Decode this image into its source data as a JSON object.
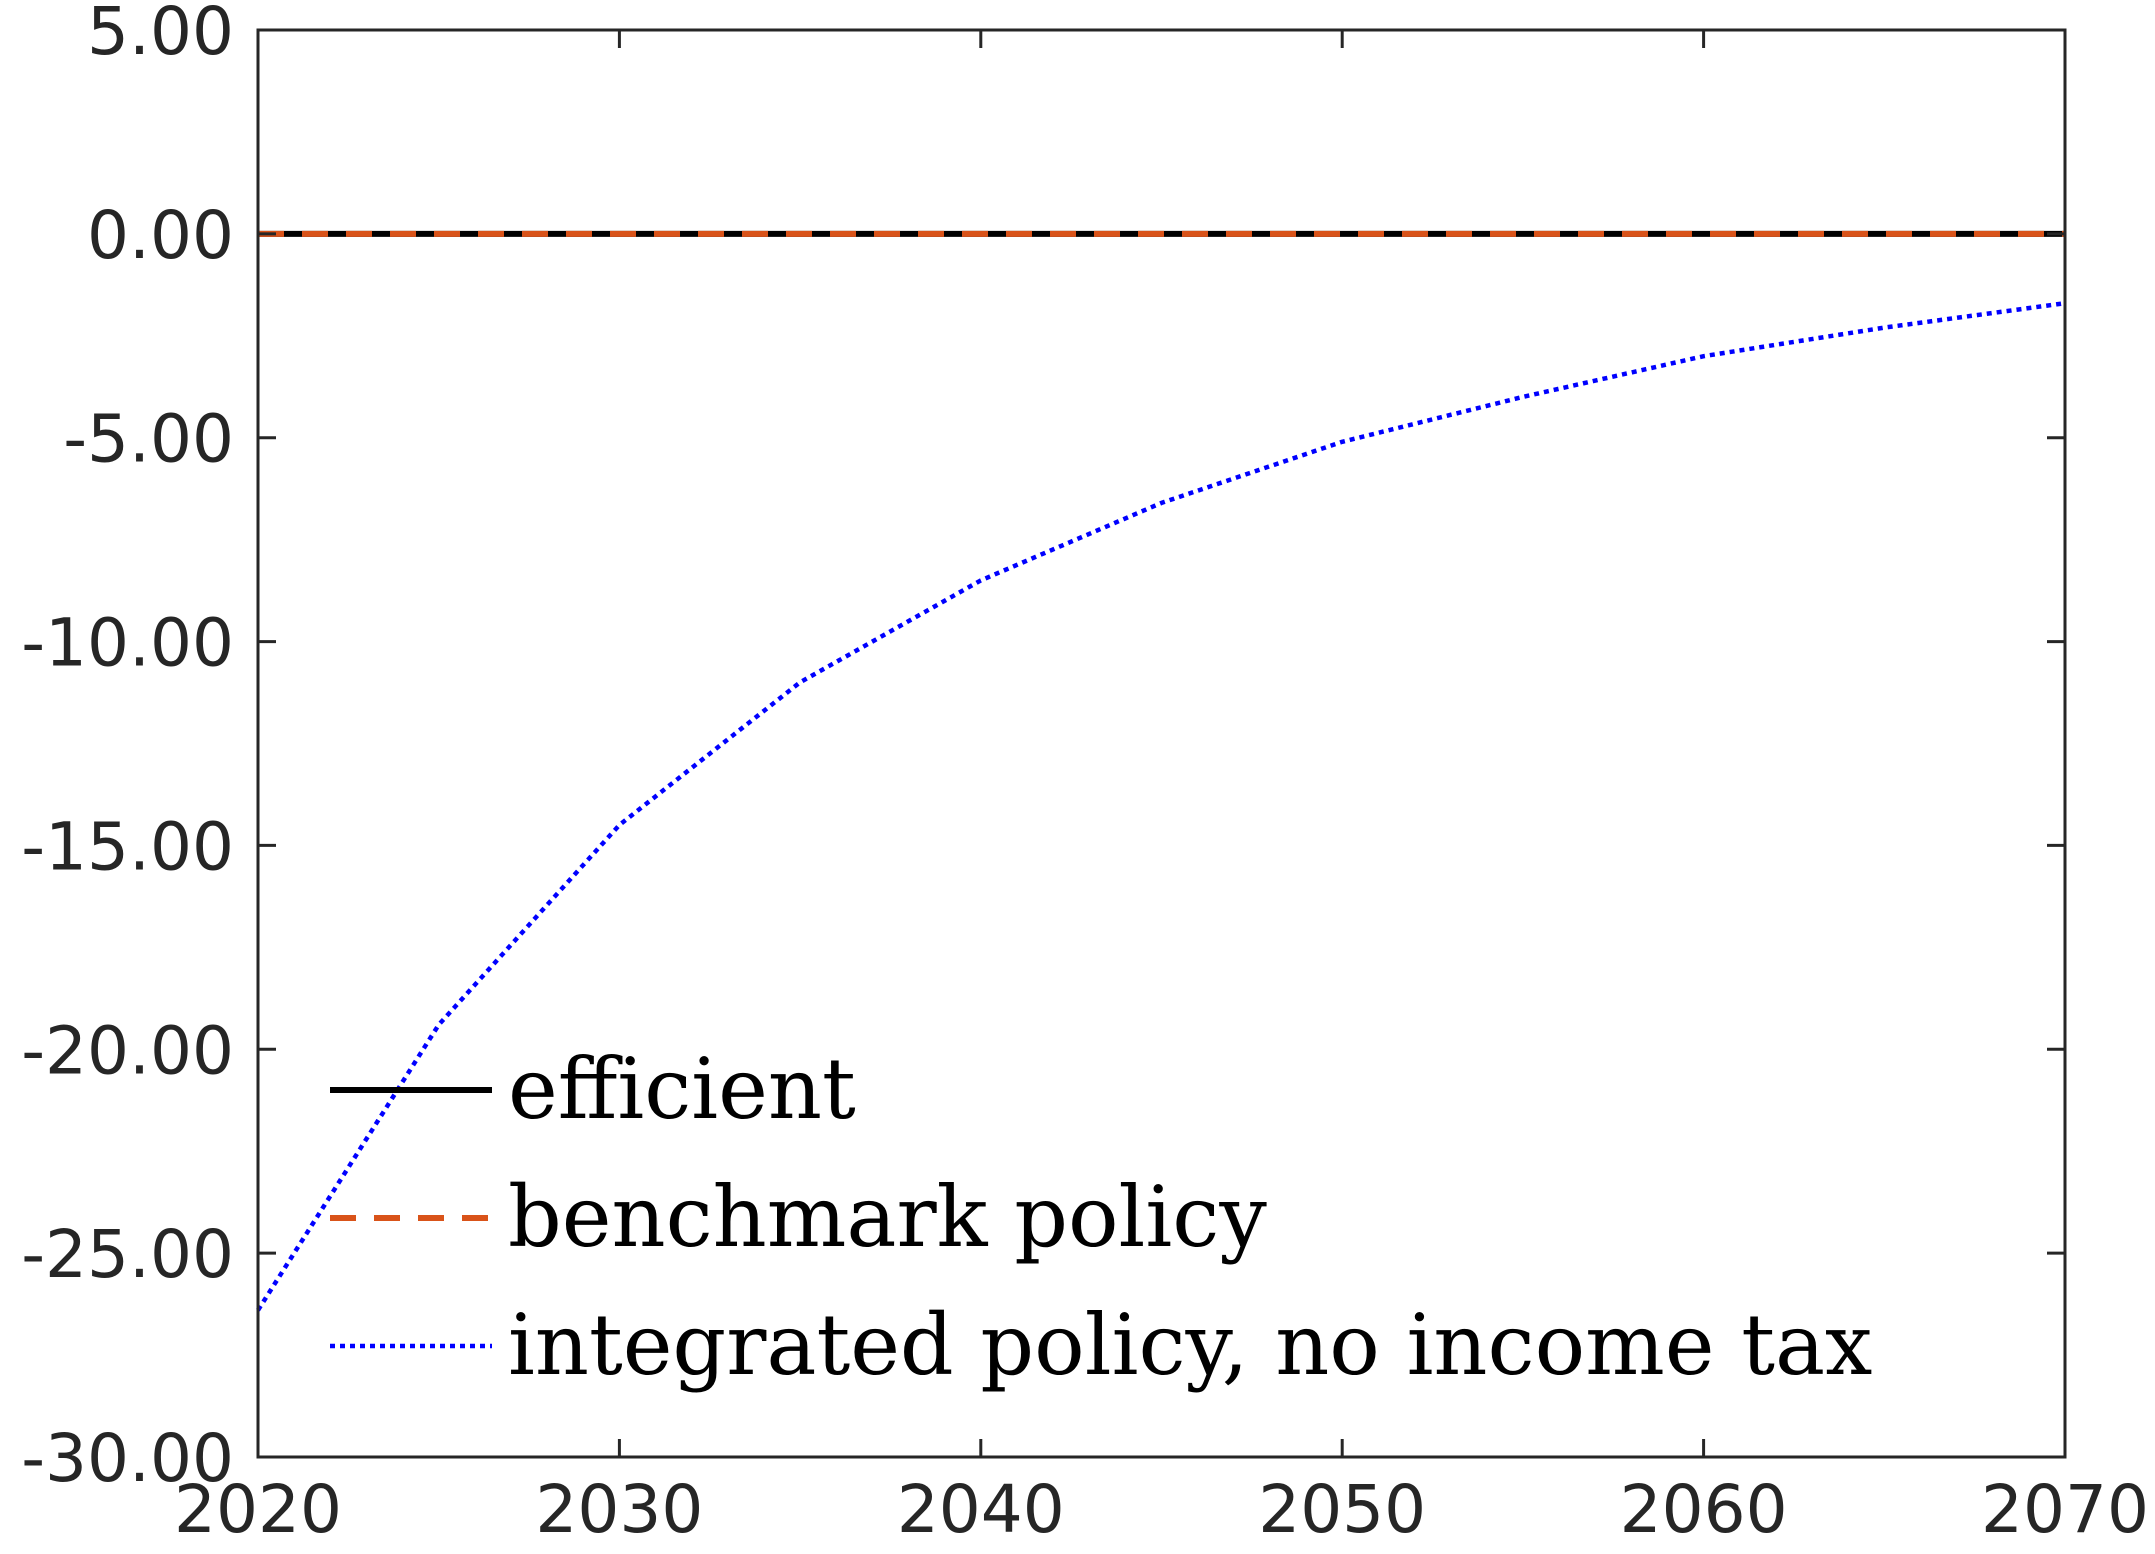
{
  "chart_data": {
    "type": "line",
    "title": "",
    "xlabel": "",
    "ylabel": "",
    "xlim": [
      2020,
      2070
    ],
    "ylim": [
      -30,
      5
    ],
    "xticks": [
      2020,
      2030,
      2040,
      2050,
      2060,
      2070
    ],
    "xtick_labels": [
      "2020",
      "2030",
      "2040",
      "2050",
      "2060",
      "2070"
    ],
    "yticks": [
      5,
      0,
      -5,
      -10,
      -15,
      -20,
      -25,
      -30
    ],
    "ytick_labels": [
      "5.00",
      "0.00",
      "-5.00",
      "-10.00",
      "-15.00",
      "-20.00",
      "-25.00",
      "-30.00"
    ],
    "grid": false,
    "legend_position": "bottom-left",
    "x": [
      2020,
      2025,
      2030,
      2035,
      2040,
      2045,
      2050,
      2055,
      2060,
      2065,
      2070
    ],
    "series": [
      {
        "name": "efficient",
        "color": "#000000",
        "style": "solid",
        "values": [
          0,
          0,
          0,
          0,
          0,
          0,
          0,
          0,
          0,
          0,
          0
        ]
      },
      {
        "name": "benchmark policy",
        "color": "#D95319",
        "style": "dashed",
        "values": [
          0,
          0,
          0,
          0,
          0,
          0,
          0,
          0,
          0,
          0,
          0
        ]
      },
      {
        "name": "integrated policy, no income tax",
        "color": "#0000FF",
        "style": "dotted",
        "values": [
          -26.4,
          -19.4,
          -14.5,
          -11.0,
          -8.5,
          -6.6,
          -5.1,
          -4.0,
          -3.0,
          -2.3,
          -1.7
        ]
      }
    ]
  }
}
